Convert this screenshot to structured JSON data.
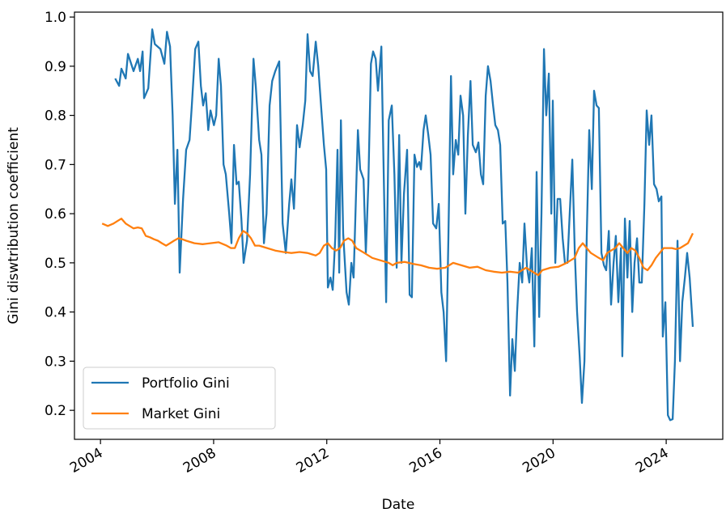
{
  "chart_data": {
    "type": "line",
    "xlabel": "Date",
    "ylabel": "Gini diswtribution coefficient",
    "xlim": [
      2003.08,
      2026.0
    ],
    "ylim": [
      0.141,
      1.01
    ],
    "xticks": [
      2004,
      2008,
      2012,
      2016,
      2020,
      2024
    ],
    "yticks": [
      0.2,
      0.3,
      0.4,
      0.5,
      0.6,
      0.7,
      0.8,
      0.9,
      {
        "value": 1,
        "label": "1.0"
      }
    ],
    "legend": "lower left",
    "series": [
      {
        "name": "Portfolio Gini",
        "color": "#1f77b4",
        "x": [
          2004.52,
          2004.66,
          2004.74,
          2004.89,
          2004.97,
          2005.17,
          2005.32,
          2005.4,
          2005.49,
          2005.54,
          2005.69,
          2005.83,
          2005.92,
          2006.12,
          2006.26,
          2006.35,
          2006.46,
          2006.55,
          2006.63,
          2006.72,
          2006.8,
          2006.92,
          2007.03,
          2007.15,
          2007.23,
          2007.35,
          2007.46,
          2007.55,
          2007.63,
          2007.72,
          2007.81,
          2007.89,
          2008.01,
          2008.09,
          2008.18,
          2008.26,
          2008.35,
          2008.43,
          2008.55,
          2008.63,
          2008.72,
          2008.81,
          2008.89,
          2008.98,
          2009.06,
          2009.18,
          2009.29,
          2009.41,
          2009.49,
          2009.61,
          2009.69,
          2009.78,
          2009.87,
          2009.98,
          2010.07,
          2010.18,
          2010.32,
          2010.44,
          2010.55,
          2010.67,
          2010.75,
          2010.84,
          2010.95,
          2011.04,
          2011.15,
          2011.24,
          2011.32,
          2011.41,
          2011.5,
          2011.61,
          2011.7,
          2011.81,
          2011.9,
          2011.98,
          2012.04,
          2012.13,
          2012.21,
          2012.3,
          2012.38,
          2012.44,
          2012.5,
          2012.58,
          2012.7,
          2012.78,
          2012.87,
          2012.95,
          2013.1,
          2013.18,
          2013.3,
          2013.38,
          2013.47,
          2013.56,
          2013.64,
          2013.73,
          2013.81,
          2013.93,
          2014.01,
          2014.1,
          2014.19,
          2014.3,
          2014.39,
          2014.47,
          2014.56,
          2014.64,
          2014.73,
          2014.84,
          2014.93,
          2015.01,
          2015.1,
          2015.19,
          2015.27,
          2015.33,
          2015.42,
          2015.5,
          2015.59,
          2015.67,
          2015.76,
          2015.87,
          2015.96,
          2016.05,
          2016.13,
          2016.22,
          2016.3,
          2016.39,
          2016.47,
          2016.56,
          2016.65,
          2016.73,
          2016.82,
          2016.9,
          2016.99,
          2017.08,
          2017.16,
          2017.27,
          2017.36,
          2017.45,
          2017.53,
          2017.62,
          2017.7,
          2017.79,
          2017.88,
          2017.96,
          2018.05,
          2018.13,
          2018.22,
          2018.31,
          2018.39,
          2018.48,
          2018.56,
          2018.65,
          2018.73,
          2018.82,
          2018.91,
          2018.99,
          2019.08,
          2019.16,
          2019.25,
          2019.34,
          2019.42,
          2019.51,
          2019.59,
          2019.68,
          2019.76,
          2019.85,
          2019.94,
          2019.99,
          2020.08,
          2020.16,
          2020.25,
          2020.34,
          2020.42,
          2020.51,
          2020.59,
          2020.68,
          2020.77,
          2020.85,
          2020.94,
          2021.02,
          2021.11,
          2021.19,
          2021.28,
          2021.37,
          2021.45,
          2021.54,
          2021.62,
          2021.71,
          2021.8,
          2021.88,
          2021.97,
          2022.05,
          2022.14,
          2022.22,
          2022.31,
          2022.4,
          2022.45,
          2022.54,
          2022.63,
          2022.71,
          2022.8,
          2022.88,
          2022.97,
          2023.05,
          2023.14,
          2023.23,
          2023.31,
          2023.4,
          2023.48,
          2023.57,
          2023.66,
          2023.74,
          2023.83,
          2023.88,
          2023.97,
          2024.06,
          2024.14,
          2024.23,
          2024.31,
          2024.4,
          2024.49,
          2024.57,
          2024.66,
          2024.74,
          2024.83,
          2024.94
        ],
        "values": [
          0.875,
          0.86,
          0.895,
          0.875,
          0.925,
          0.89,
          0.915,
          0.89,
          0.93,
          0.835,
          0.855,
          0.975,
          0.945,
          0.935,
          0.905,
          0.97,
          0.94,
          0.8,
          0.62,
          0.73,
          0.48,
          0.63,
          0.73,
          0.75,
          0.82,
          0.935,
          0.95,
          0.86,
          0.82,
          0.845,
          0.77,
          0.81,
          0.78,
          0.8,
          0.915,
          0.86,
          0.7,
          0.68,
          0.6,
          0.54,
          0.74,
          0.66,
          0.665,
          0.59,
          0.5,
          0.545,
          0.68,
          0.915,
          0.86,
          0.75,
          0.72,
          0.54,
          0.6,
          0.82,
          0.87,
          0.89,
          0.91,
          0.58,
          0.52,
          0.62,
          0.67,
          0.61,
          0.78,
          0.735,
          0.78,
          0.83,
          0.965,
          0.89,
          0.88,
          0.95,
          0.9,
          0.81,
          0.74,
          0.69,
          0.45,
          0.47,
          0.445,
          0.55,
          0.73,
          0.48,
          0.79,
          0.56,
          0.44,
          0.415,
          0.5,
          0.47,
          0.77,
          0.69,
          0.67,
          0.52,
          0.66,
          0.905,
          0.93,
          0.915,
          0.85,
          0.94,
          0.69,
          0.42,
          0.79,
          0.82,
          0.68,
          0.49,
          0.76,
          0.5,
          0.64,
          0.73,
          0.435,
          0.43,
          0.72,
          0.695,
          0.705,
          0.69,
          0.77,
          0.8,
          0.76,
          0.72,
          0.58,
          0.57,
          0.62,
          0.44,
          0.4,
          0.3,
          0.55,
          0.88,
          0.68,
          0.75,
          0.72,
          0.84,
          0.8,
          0.6,
          0.76,
          0.87,
          0.74,
          0.725,
          0.745,
          0.68,
          0.66,
          0.84,
          0.9,
          0.87,
          0.82,
          0.78,
          0.77,
          0.74,
          0.58,
          0.585,
          0.46,
          0.23,
          0.345,
          0.28,
          0.4,
          0.5,
          0.46,
          0.58,
          0.49,
          0.46,
          0.53,
          0.33,
          0.685,
          0.39,
          0.6,
          0.935,
          0.8,
          0.885,
          0.6,
          0.83,
          0.5,
          0.63,
          0.63,
          0.55,
          0.5,
          0.5,
          0.6,
          0.71,
          0.52,
          0.4,
          0.31,
          0.215,
          0.3,
          0.55,
          0.77,
          0.65,
          0.85,
          0.82,
          0.815,
          0.52,
          0.495,
          0.485,
          0.565,
          0.415,
          0.5,
          0.555,
          0.42,
          0.53,
          0.31,
          0.59,
          0.47,
          0.585,
          0.4,
          0.5,
          0.55,
          0.46,
          0.46,
          0.62,
          0.81,
          0.74,
          0.8,
          0.66,
          0.65,
          0.625,
          0.635,
          0.35,
          0.42,
          0.19,
          0.18,
          0.182,
          0.3,
          0.545,
          0.3,
          0.42,
          0.47,
          0.52,
          0.47,
          0.37
        ]
      },
      {
        "name": "Market Gini",
        "color": "#ff7f0e",
        "x": [
          2004.06,
          2004.26,
          2004.46,
          2004.6,
          2004.74,
          2004.89,
          2005.03,
          2005.17,
          2005.32,
          2005.46,
          2005.6,
          2005.75,
          2005.89,
          2006.03,
          2006.17,
          2006.32,
          2006.46,
          2006.6,
          2006.75,
          2006.89,
          2007.03,
          2007.32,
          2007.61,
          2007.89,
          2008.18,
          2008.46,
          2008.61,
          2008.75,
          2008.89,
          2009.04,
          2009.18,
          2009.32,
          2009.46,
          2009.61,
          2009.89,
          2010.18,
          2010.47,
          2010.75,
          2011.04,
          2011.32,
          2011.61,
          2011.75,
          2011.9,
          2012.04,
          2012.18,
          2012.33,
          2012.47,
          2012.61,
          2012.76,
          2012.9,
          2013.04,
          2013.33,
          2013.61,
          2013.9,
          2014.19,
          2014.33,
          2014.47,
          2014.76,
          2015.04,
          2015.33,
          2015.62,
          2015.9,
          2016.19,
          2016.47,
          2016.76,
          2017.05,
          2017.33,
          2017.62,
          2017.9,
          2018.19,
          2018.48,
          2018.76,
          2019.05,
          2019.19,
          2019.33,
          2019.48,
          2019.62,
          2019.91,
          2020.19,
          2020.48,
          2020.62,
          2020.76,
          2020.91,
          2021.05,
          2021.19,
          2021.34,
          2021.62,
          2021.77,
          2021.91,
          2022.05,
          2022.2,
          2022.34,
          2022.48,
          2022.63,
          2022.77,
          2022.91,
          2023.05,
          2023.2,
          2023.34,
          2023.48,
          2023.63,
          2023.77,
          2023.91,
          2024.2,
          2024.34,
          2024.49,
          2024.63,
          2024.77,
          2024.94
        ],
        "values": [
          0.58,
          0.575,
          0.58,
          0.585,
          0.59,
          0.58,
          0.575,
          0.57,
          0.572,
          0.57,
          0.555,
          0.552,
          0.548,
          0.545,
          0.54,
          0.535,
          0.54,
          0.545,
          0.55,
          0.548,
          0.545,
          0.54,
          0.538,
          0.54,
          0.542,
          0.535,
          0.53,
          0.53,
          0.55,
          0.565,
          0.56,
          0.55,
          0.535,
          0.535,
          0.53,
          0.525,
          0.522,
          0.52,
          0.522,
          0.52,
          0.515,
          0.52,
          0.535,
          0.54,
          0.53,
          0.525,
          0.53,
          0.545,
          0.55,
          0.545,
          0.53,
          0.52,
          0.51,
          0.505,
          0.5,
          0.495,
          0.5,
          0.502,
          0.498,
          0.495,
          0.49,
          0.488,
          0.49,
          0.5,
          0.495,
          0.49,
          0.492,
          0.485,
          0.482,
          0.48,
          0.482,
          0.48,
          0.49,
          0.485,
          0.48,
          0.475,
          0.485,
          0.49,
          0.492,
          0.5,
          0.505,
          0.51,
          0.53,
          0.54,
          0.53,
          0.52,
          0.51,
          0.505,
          0.52,
          0.525,
          0.53,
          0.54,
          0.53,
          0.52,
          0.53,
          0.525,
          0.51,
          0.49,
          0.485,
          0.495,
          0.51,
          0.52,
          0.53,
          0.53,
          0.528,
          0.53,
          0.535,
          0.54,
          0.56
        ]
      }
    ]
  }
}
